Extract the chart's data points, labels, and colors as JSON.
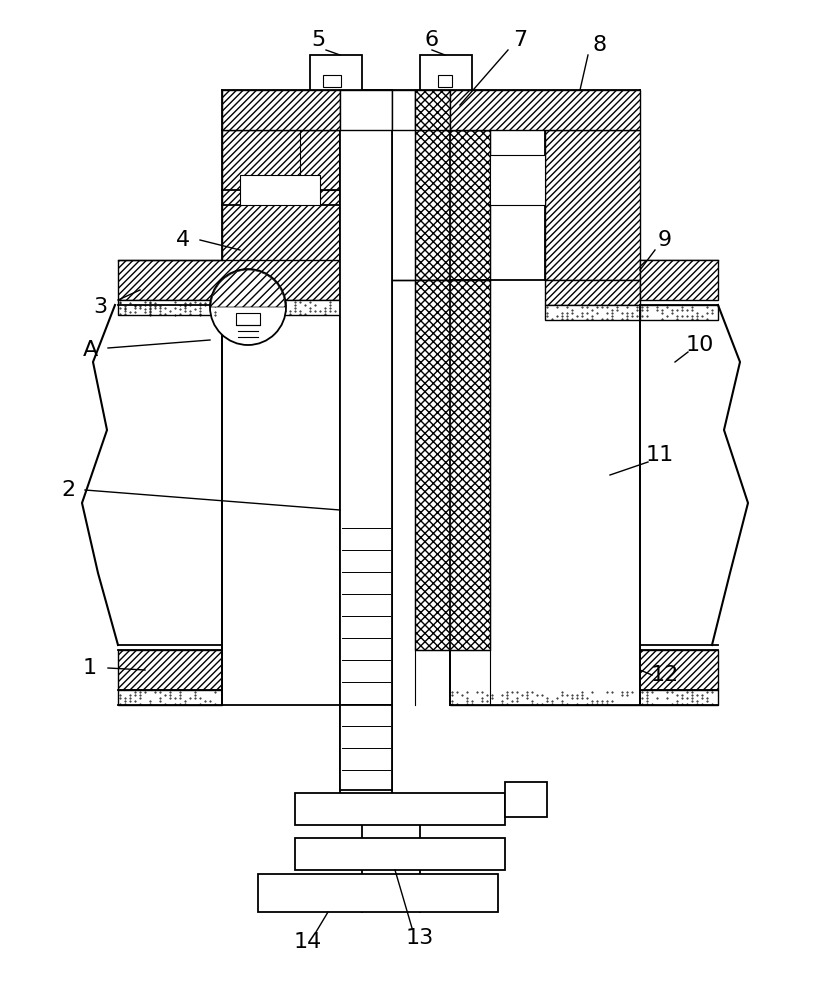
{
  "bg_color": "#ffffff",
  "lc": "#000000",
  "lw": 1.3,
  "fig_w": 8.33,
  "fig_h": 10.0,
  "dpi": 100,
  "xlim": [
    0,
    833
  ],
  "ylim": [
    0,
    1000
  ]
}
